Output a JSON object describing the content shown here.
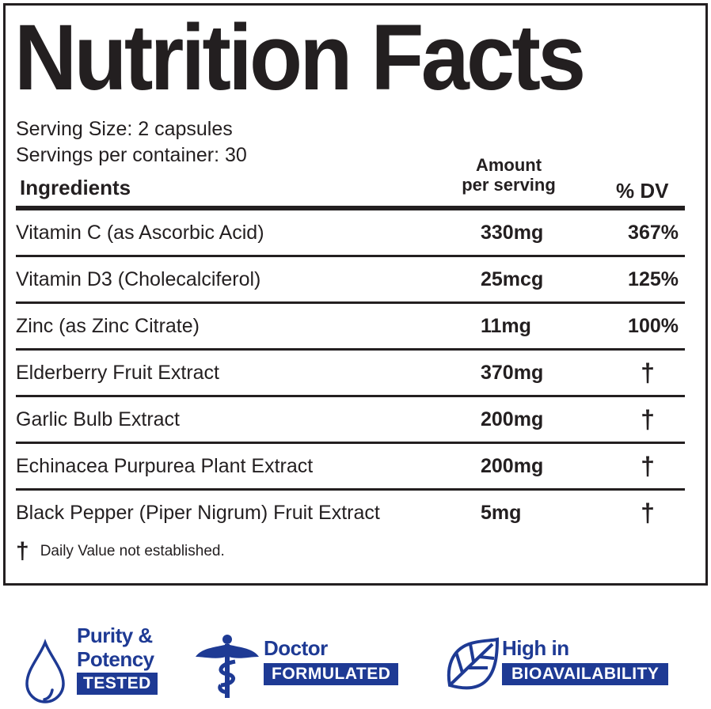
{
  "title": "Nutrition Facts",
  "serving_size": "Serving Size: 2 capsules",
  "servings_per_container": "Servings per container: 30",
  "headers": {
    "ingredients": "Ingredients",
    "amount_line1": "Amount",
    "amount_line2": "per serving",
    "dv": "% DV"
  },
  "rows": [
    {
      "name": "Vitamin C (as Ascorbic Acid)",
      "amount": "330mg",
      "dv": "367%"
    },
    {
      "name": "Vitamin D3 (Cholecalciferol)",
      "amount": "25mcg",
      "dv": "125%"
    },
    {
      "name": "Zinc (as Zinc Citrate)",
      "amount": "11mg",
      "dv": "100%"
    },
    {
      "name": "Elderberry Fruit Extract",
      "amount": "370mg",
      "dv": "†"
    },
    {
      "name": "Garlic Bulb Extract",
      "amount": "200mg",
      "dv": "†"
    },
    {
      "name": "Echinacea Purpurea Plant Extract",
      "amount": "200mg",
      "dv": "†"
    },
    {
      "name": "Black Pepper (Piper Nigrum) Fruit Extract",
      "amount": "5mg",
      "dv": "†"
    }
  ],
  "footnote": {
    "symbol": "†",
    "text": "Daily Value not established."
  },
  "badges": [
    {
      "icon": "water-drop-icon",
      "line1": "Purity &",
      "line2": "Potency",
      "box": "TESTED"
    },
    {
      "icon": "caduceus-icon",
      "line1": "Doctor",
      "box": "FORMULATED"
    },
    {
      "icon": "leaf-icon",
      "line1": "High in",
      "box": "BIOAVAILABILITY"
    }
  ],
  "colors": {
    "ink": "#231f20",
    "brand_blue": "#1e3a94"
  }
}
